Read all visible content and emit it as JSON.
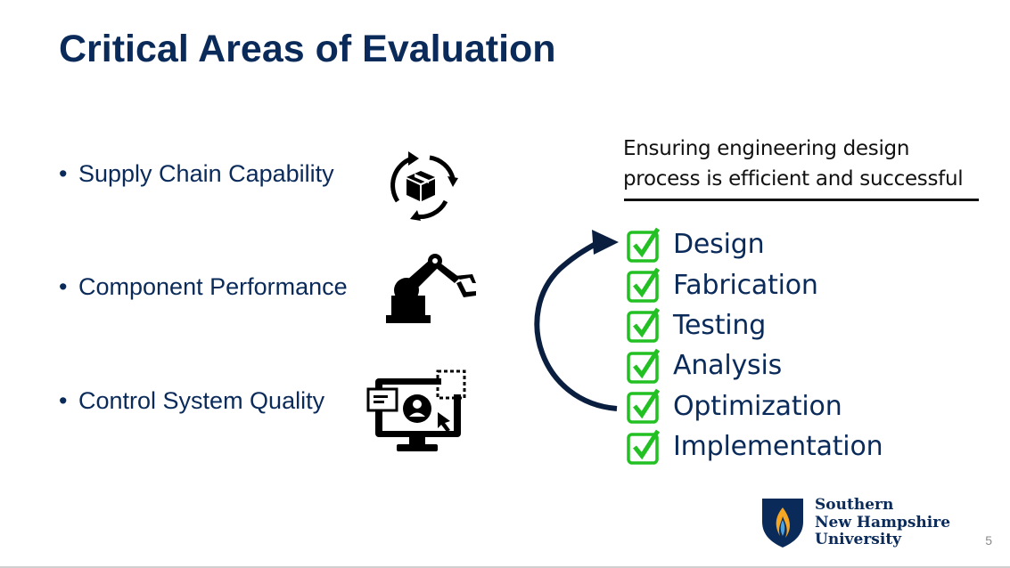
{
  "slide": {
    "title": "Critical Areas of Evaluation",
    "page_number": "5"
  },
  "bullets": [
    {
      "label": "Supply Chain Capability",
      "icon": "supply-chain-box-cycle-icon"
    },
    {
      "label": "Component Performance",
      "icon": "robotic-arm-icon"
    },
    {
      "label": "Control System Quality",
      "icon": "computer-monitor-user-icon"
    }
  ],
  "process": {
    "header_line1": "Ensuring engineering design",
    "header_line2": "process is efficient and successful",
    "steps": [
      "Design",
      "Fabrication",
      "Testing",
      "Analysis",
      "Optimization",
      "Implementation"
    ],
    "check_icon": "green-checkbox-icon",
    "arrow_icon": "curved-arrow-icon"
  },
  "logo": {
    "line1": "Southern",
    "line2": "New Hampshire",
    "line3": "University",
    "icon": "snhu-shield-flame-icon"
  },
  "colors": {
    "title": "#0a2a5a",
    "check_green": "#22c022",
    "arrow": "#0a1f3f",
    "logo_flame": "#f5a623"
  }
}
